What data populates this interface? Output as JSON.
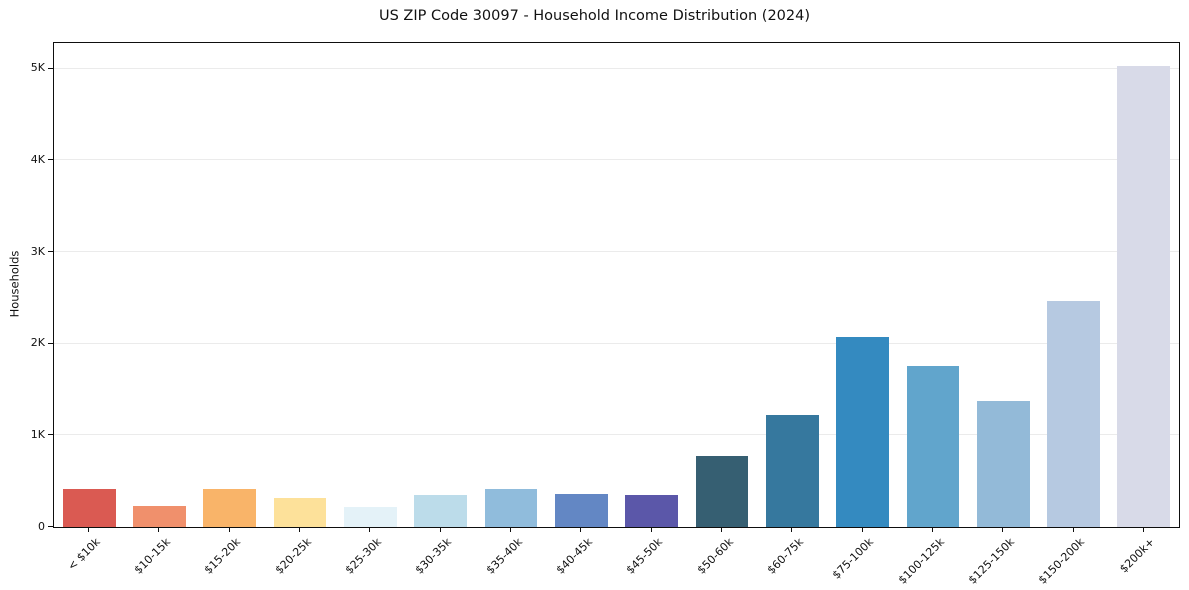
{
  "chart_data": {
    "type": "bar",
    "title": "US ZIP Code 30097 - Household Income Distribution (2024)",
    "xlabel": "",
    "ylabel": "Households",
    "categories": [
      "< $10k",
      "$10-15k",
      "$15-20k",
      "$20-25k",
      "$25-30k",
      "$30-35k",
      "$35-40k",
      "$40-45k",
      "$45-50k",
      "$50-60k",
      "$60-75k",
      "$75-100k",
      "$100-125k",
      "$125-150k",
      "$150-200k",
      "$200k+"
    ],
    "values": [
      410,
      225,
      420,
      320,
      215,
      350,
      420,
      355,
      350,
      780,
      1220,
      2070,
      1755,
      1370,
      2470,
      5030
    ],
    "bar_colors": [
      "#da5a52",
      "#f0906c",
      "#f9b469",
      "#fde19a",
      "#e4f2f8",
      "#bcdcea",
      "#90bcdc",
      "#6387c4",
      "#5b57a9",
      "#365f72",
      "#36789e",
      "#348ac0",
      "#61a5cc",
      "#93bad8",
      "#b6c9e1",
      "#d8dae8"
    ],
    "ylim": [
      0,
      5280
    ],
    "yticks": [
      {
        "value": 0,
        "label": "0"
      },
      {
        "value": 1000,
        "label": "1K"
      },
      {
        "value": 2000,
        "label": "2K"
      },
      {
        "value": 3000,
        "label": "3K"
      },
      {
        "value": 4000,
        "label": "4K"
      },
      {
        "value": 5000,
        "label": "5K"
      }
    ],
    "grid": "horizontal",
    "grid_color": "#ebebeb",
    "legend": "none",
    "spine_color": "#0e0e0e",
    "background_color": "#ffffff"
  }
}
